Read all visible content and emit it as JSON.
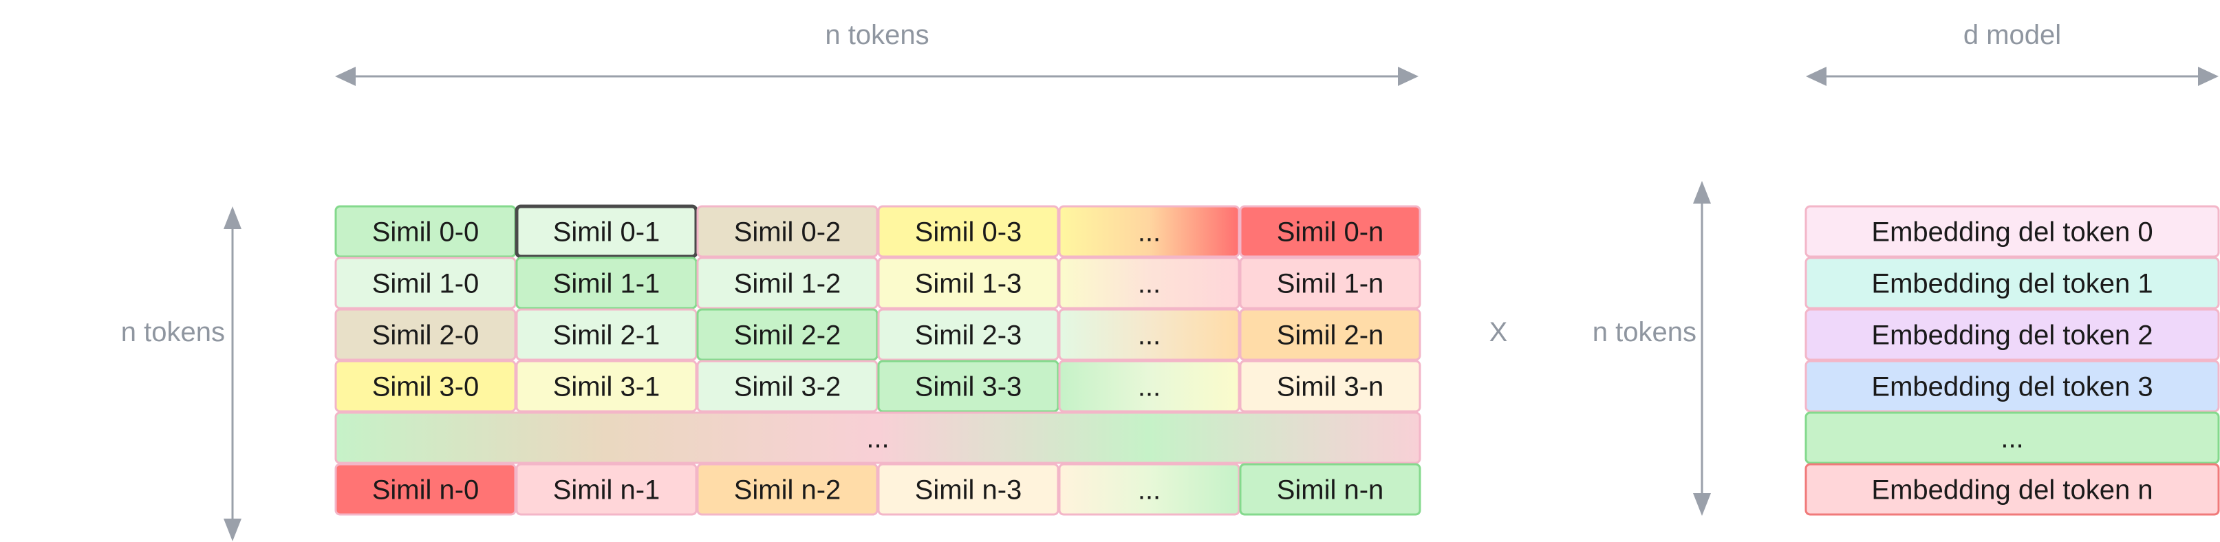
{
  "labels": {
    "top_n_tokens": "n tokens",
    "top_d_model": "d model",
    "left_n_tokens": "n tokens",
    "mid_n_tokens": "n tokens",
    "multiply": "X"
  },
  "colors": {
    "arrow": "#9aa0aa",
    "default_border": "#f3b6c8"
  },
  "similarity_matrix": {
    "rows": [
      [
        {
          "text": "Simil 0-0",
          "fill": "#c6f2c8",
          "stroke": "#84d98d"
        },
        {
          "text": "Simil 0-1",
          "fill": "#e3f8e3",
          "stroke": "#4a4a4a",
          "strokeWidth": 5
        },
        {
          "text": "Simil 0-2",
          "fill": "#e8e0c8",
          "stroke": "#f3b6c8"
        },
        {
          "text": "Simil 0-3",
          "fill": "#fff7a0",
          "stroke": "#f3b6c8"
        },
        {
          "text": "...",
          "gradient": [
            "#fff7a0",
            "#ffd6a0",
            "#ff7070"
          ],
          "stroke": "#f3b6c8"
        },
        {
          "text": "Simil 0-n",
          "fill": "#ff7474",
          "stroke": "#f3b6c8"
        }
      ],
      [
        {
          "text": "Simil 1-0",
          "fill": "#e3f8e3",
          "stroke": "#f3b6c8"
        },
        {
          "text": "Simil 1-1",
          "fill": "#c6f2c8",
          "stroke": "#84d98d"
        },
        {
          "text": "Simil 1-2",
          "fill": "#e3f8e3",
          "stroke": "#f3b6c8"
        },
        {
          "text": "Simil 1-3",
          "fill": "#fbfbcc",
          "stroke": "#f3b6c8"
        },
        {
          "text": "...",
          "gradient": [
            "#fbfbcc",
            "#fde3d8",
            "#ffd6d9"
          ],
          "stroke": "#f3b6c8"
        },
        {
          "text": "Simil 1-n",
          "fill": "#ffd6d9",
          "stroke": "#f3b6c8"
        }
      ],
      [
        {
          "text": "Simil 2-0",
          "fill": "#e8e0c8",
          "stroke": "#f3b6c8"
        },
        {
          "text": "Simil 2-1",
          "fill": "#e3f8e3",
          "stroke": "#f3b6c8"
        },
        {
          "text": "Simil 2-2",
          "fill": "#c6f2c8",
          "stroke": "#84d98d"
        },
        {
          "text": "Simil 2-3",
          "fill": "#e3f8e3",
          "stroke": "#f3b6c8"
        },
        {
          "text": "...",
          "gradient": [
            "#e3f8e3",
            "#f6e8cc",
            "#ffdca8"
          ],
          "stroke": "#f3b6c8"
        },
        {
          "text": "Simil 2-n",
          "fill": "#ffdca8",
          "stroke": "#f3b6c8"
        }
      ],
      [
        {
          "text": "Simil 3-0",
          "fill": "#fff7a0",
          "stroke": "#f3b6c8"
        },
        {
          "text": "Simil 3-1",
          "fill": "#fbfbcc",
          "stroke": "#f3b6c8"
        },
        {
          "text": "Simil 3-2",
          "fill": "#e3f8e3",
          "stroke": "#f3b6c8"
        },
        {
          "text": "Simil 3-3",
          "fill": "#c6f2c8",
          "stroke": "#84d98d"
        },
        {
          "text": "...",
          "gradient": [
            "#c6f2c8",
            "#e8f8d8",
            "#fbfbcc"
          ],
          "stroke": "#f3b6c8"
        },
        {
          "text": "Simil 3-n",
          "fill": "#fff3dc",
          "stroke": "#f3b6c8"
        }
      ],
      [
        {
          "text": "...",
          "span": 6,
          "gradient": [
            "#c6f2c8",
            "#ead8c0",
            "#f8d0d6",
            "#c6f2c8",
            "#f8d0d6"
          ],
          "stroke": "#f3b6c8"
        }
      ],
      [
        {
          "text": "Simil n-0",
          "fill": "#ff7474",
          "stroke": "#f3b6c8"
        },
        {
          "text": "Simil n-1",
          "fill": "#ffd6d9",
          "stroke": "#f3b6c8"
        },
        {
          "text": "Simil n-2",
          "fill": "#ffdca8",
          "stroke": "#f3b6c8"
        },
        {
          "text": "Simil n-3",
          "fill": "#fff3dc",
          "stroke": "#f3b6c8"
        },
        {
          "text": "...",
          "gradient": [
            "#fff3dc",
            "#e8f8d8",
            "#c6f2c8"
          ],
          "stroke": "#f3b6c8"
        },
        {
          "text": "Simil n-n",
          "fill": "#c6f2c8",
          "stroke": "#84d98d"
        }
      ]
    ]
  },
  "embeddings": [
    {
      "text": "Embedding del token 0",
      "fill": "#fde8f4",
      "stroke": "#f3b6c8"
    },
    {
      "text": "Embedding del token 1",
      "fill": "#d4f7f0",
      "stroke": "#f3b6c8"
    },
    {
      "text": "Embedding del token 2",
      "fill": "#efd8fa",
      "stroke": "#f3b6c8"
    },
    {
      "text": "Embedding del token 3",
      "fill": "#cfe2fd",
      "stroke": "#f3b6c8"
    },
    {
      "text": "...",
      "fill": "#c6f2c8",
      "stroke": "#84d98d"
    },
    {
      "text": "Embedding del token n",
      "fill": "#ffd6d9",
      "stroke": "#f07a7a"
    }
  ]
}
